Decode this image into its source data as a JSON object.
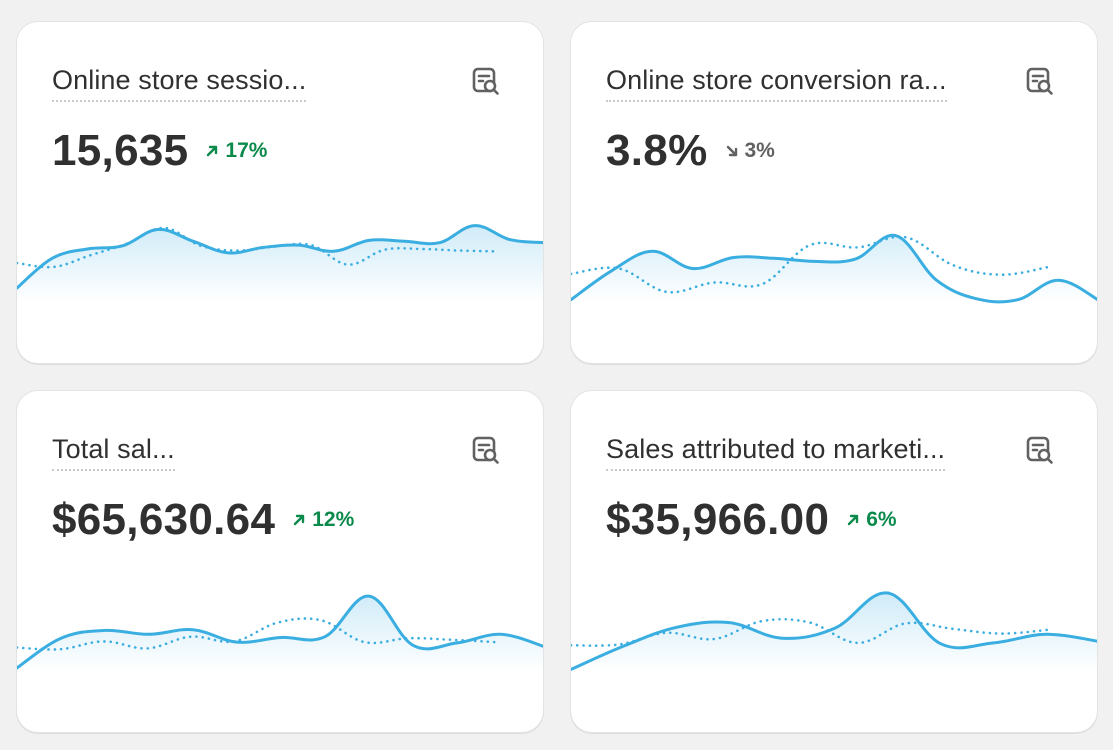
{
  "colors": {
    "background": "#f1f1f1",
    "card": "#ffffff",
    "line": "#3aaee0",
    "area_top": "#cdeaf8",
    "positive": "#0c8a4c",
    "neutral": "#616161"
  },
  "cards": [
    {
      "title": "Online store sessio...",
      "value": "15,635",
      "change": "17%",
      "trend": "up",
      "icon": "report-search-icon"
    },
    {
      "title": "Online store conversion ra...",
      "value": "3.8%",
      "change": "3%",
      "trend": "down",
      "icon": "report-search-icon"
    },
    {
      "title": "Total sal...",
      "value": "$65,630.64",
      "change": "12%",
      "trend": "up",
      "icon": "report-search-icon"
    },
    {
      "title": "Sales attributed to marketi...",
      "value": "$35,966.00",
      "change": "6%",
      "trend": "up",
      "icon": "report-search-icon"
    }
  ],
  "chart_data": [
    {
      "type": "area",
      "series": [
        {
          "values": [
            0.18,
            0.56,
            0.68,
            0.72,
            0.93,
            0.78,
            0.63,
            0.7,
            0.73,
            0.65,
            0.79,
            0.78,
            0.76,
            0.98,
            0.8,
            0.76
          ]
        },
        {
          "values": [
            0.5,
            0.45,
            0.6,
            0.75,
            0.95,
            0.72,
            0.66,
            0.71,
            0.73,
            0.48,
            0.67,
            0.68,
            0.66,
            0.65
          ]
        }
      ]
    },
    {
      "type": "area",
      "series": [
        {
          "values": [
            0.03,
            0.4,
            0.65,
            0.43,
            0.57,
            0.56,
            0.52,
            0.55,
            0.85,
            0.28,
            0.04,
            0.03,
            0.28,
            0.02
          ]
        },
        {
          "values": [
            0.36,
            0.43,
            0.13,
            0.25,
            0.23,
            0.73,
            0.7,
            0.83,
            0.47,
            0.35,
            0.45
          ]
        }
      ]
    },
    {
      "type": "area",
      "series": [
        {
          "values": [
            0.04,
            0.42,
            0.52,
            0.47,
            0.53,
            0.37,
            0.43,
            0.44,
            0.96,
            0.33,
            0.36,
            0.47,
            0.31
          ]
        },
        {
          "values": [
            0.3,
            0.28,
            0.38,
            0.29,
            0.44,
            0.38,
            0.62,
            0.65,
            0.37,
            0.42,
            0.4,
            0.37
          ]
        }
      ]
    },
    {
      "type": "area",
      "series": [
        {
          "values": [
            0.02,
            0.32,
            0.56,
            0.62,
            0.42,
            0.55,
            1.0,
            0.35,
            0.36,
            0.47,
            0.38
          ]
        },
        {
          "values": [
            0.33,
            0.34,
            0.49,
            0.41,
            0.64,
            0.62,
            0.36,
            0.61,
            0.54,
            0.48,
            0.53
          ]
        }
      ]
    }
  ]
}
